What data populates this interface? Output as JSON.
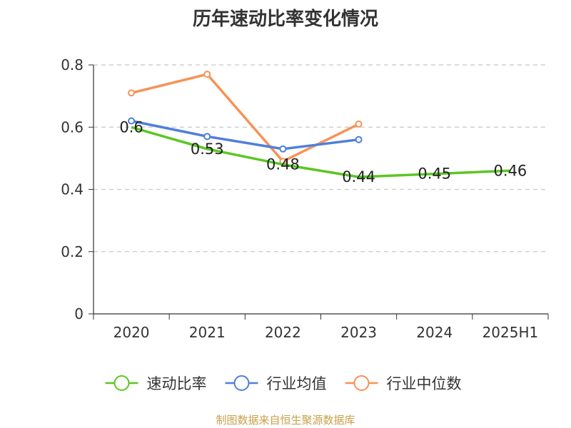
{
  "chart_data": {
    "type": "line",
    "title": "历年速动比率变化情况",
    "categories": [
      "2020",
      "2021",
      "2022",
      "2023",
      "2024",
      "2025H1"
    ],
    "y_ticks": [
      "0",
      "0.2",
      "0.4",
      "0.6",
      "0.8"
    ],
    "ylim": [
      0,
      0.8
    ],
    "grid": true,
    "legend_position": "bottom",
    "series": [
      {
        "name": "速动比率",
        "color": "#5cc623",
        "values": [
          0.6,
          0.53,
          0.48,
          0.44,
          0.45,
          0.46
        ],
        "labels": [
          "0.6",
          "0.53",
          "0.48",
          "0.44",
          "0.45",
          "0.46"
        ]
      },
      {
        "name": "行业均值",
        "color": "#4e7fdb",
        "values": [
          0.62,
          0.57,
          0.53,
          0.56,
          null,
          null
        ]
      },
      {
        "name": "行业中位数",
        "color": "#f79256",
        "values": [
          0.71,
          0.77,
          0.49,
          0.61,
          null,
          null
        ]
      }
    ]
  },
  "source": "制图数据来自恒生聚源数据库"
}
